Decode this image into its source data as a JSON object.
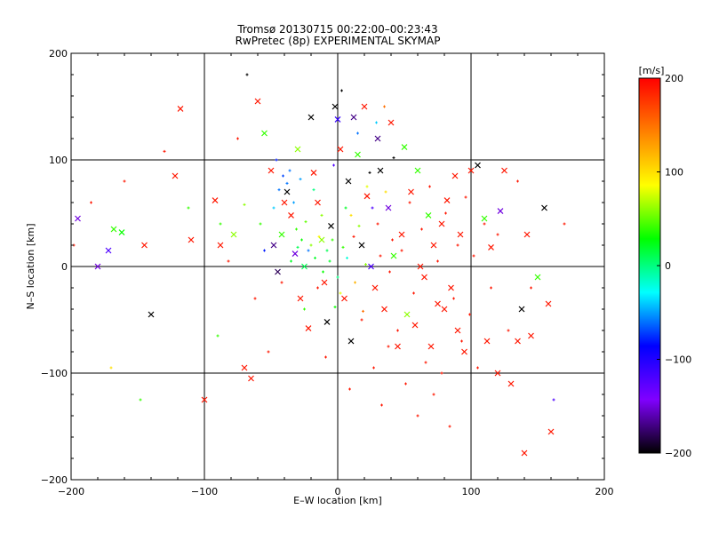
{
  "title_line1": "Tromsø 20130715 00:22:00–00:23:43",
  "title_line2": "RwPretec (8p) EXPERIMENTAL SKYMAP",
  "chart_data": {
    "type": "scatter",
    "title": "Tromsø 20130715 00:22:00–00:23:43 / RwPretec (8p) EXPERIMENTAL SKYMAP",
    "xlabel": "E–W location [km]",
    "ylabel": "N–S location [km]",
    "xlim": [
      -200,
      200
    ],
    "ylim": [
      -200,
      200
    ],
    "xticks": [
      "−200",
      "−100",
      "0",
      "100",
      "200"
    ],
    "yticks": [
      "−200",
      "−100",
      "0",
      "100",
      "200"
    ],
    "grid": true,
    "colorbar": {
      "label": "[m/s]",
      "range": [
        -200,
        200
      ],
      "ticks": [
        "200",
        "100",
        "0",
        "−100",
        "−200"
      ],
      "colors": [
        "#ff0000",
        "#ff8000",
        "#ffff00",
        "#00ff00",
        "#00ffff",
        "#0000ff",
        "#8000ff",
        "#000000"
      ]
    },
    "series": [
      {
        "marker": "x",
        "points": [
          [
            -195,
            45,
            -150
          ],
          [
            -180,
            0,
            -150
          ],
          [
            -172,
            15,
            -120
          ],
          [
            -168,
            35,
            40
          ],
          [
            -162,
            32,
            30
          ],
          [
            -145,
            20,
            190
          ],
          [
            -140,
            -45,
            -200
          ],
          [
            -118,
            148,
            190
          ],
          [
            -122,
            85,
            190
          ],
          [
            -110,
            25,
            190
          ],
          [
            -100,
            -125,
            190
          ],
          [
            -92,
            62,
            190
          ],
          [
            -88,
            20,
            190
          ],
          [
            -78,
            30,
            60
          ],
          [
            -70,
            -95,
            190
          ],
          [
            -65,
            -105,
            190
          ],
          [
            -60,
            155,
            190
          ],
          [
            -55,
            125,
            40
          ],
          [
            -50,
            90,
            190
          ],
          [
            -48,
            20,
            -170
          ],
          [
            -45,
            -5,
            -180
          ],
          [
            -42,
            30,
            40
          ],
          [
            -40,
            60,
            190
          ],
          [
            -38,
            70,
            -200
          ],
          [
            -35,
            48,
            190
          ],
          [
            -32,
            12,
            -150
          ],
          [
            -30,
            110,
            60
          ],
          [
            -28,
            -30,
            190
          ],
          [
            -25,
            0,
            10
          ],
          [
            -22,
            -58,
            190
          ],
          [
            -20,
            140,
            -200
          ],
          [
            -18,
            88,
            190
          ],
          [
            -15,
            60,
            190
          ],
          [
            -12,
            25,
            60
          ],
          [
            -10,
            -15,
            190
          ],
          [
            -8,
            -52,
            -200
          ],
          [
            -5,
            38,
            -200
          ],
          [
            -2,
            150,
            -200
          ],
          [
            0,
            138,
            -110
          ],
          [
            2,
            110,
            190
          ],
          [
            5,
            -30,
            190
          ],
          [
            8,
            80,
            -200
          ],
          [
            10,
            -70,
            -200
          ],
          [
            12,
            140,
            -170
          ],
          [
            15,
            105,
            40
          ],
          [
            18,
            20,
            -200
          ],
          [
            20,
            150,
            190
          ],
          [
            22,
            66,
            190
          ],
          [
            25,
            0,
            -120
          ],
          [
            28,
            -20,
            190
          ],
          [
            30,
            120,
            -170
          ],
          [
            32,
            90,
            -200
          ],
          [
            35,
            -40,
            190
          ],
          [
            38,
            55,
            -150
          ],
          [
            40,
            135,
            190
          ],
          [
            42,
            10,
            40
          ],
          [
            45,
            -75,
            190
          ],
          [
            48,
            30,
            190
          ],
          [
            50,
            112,
            40
          ],
          [
            52,
            -45,
            60
          ],
          [
            55,
            70,
            190
          ],
          [
            58,
            -55,
            190
          ],
          [
            60,
            90,
            40
          ],
          [
            62,
            0,
            190
          ],
          [
            65,
            -10,
            190
          ],
          [
            68,
            48,
            40
          ],
          [
            70,
            -75,
            190
          ],
          [
            72,
            20,
            190
          ],
          [
            75,
            -35,
            190
          ],
          [
            78,
            40,
            190
          ],
          [
            80,
            -40,
            190
          ],
          [
            82,
            62,
            190
          ],
          [
            85,
            -20,
            190
          ],
          [
            88,
            85,
            190
          ],
          [
            90,
            -60,
            190
          ],
          [
            92,
            30,
            190
          ],
          [
            95,
            -80,
            190
          ],
          [
            100,
            90,
            190
          ],
          [
            105,
            95,
            -200
          ],
          [
            110,
            45,
            40
          ],
          [
            112,
            -70,
            190
          ],
          [
            115,
            18,
            190
          ],
          [
            120,
            -100,
            190
          ],
          [
            122,
            52,
            -150
          ],
          [
            125,
            90,
            190
          ],
          [
            130,
            -110,
            190
          ],
          [
            135,
            -70,
            190
          ],
          [
            138,
            -40,
            -200
          ],
          [
            140,
            -175,
            190
          ],
          [
            142,
            30,
            190
          ],
          [
            145,
            -65,
            190
          ],
          [
            150,
            -10,
            40
          ],
          [
            155,
            55,
            -200
          ],
          [
            158,
            -35,
            190
          ],
          [
            160,
            -155,
            190
          ]
        ]
      },
      {
        "marker": "+",
        "points": [
          [
            -198,
            20,
            190
          ],
          [
            -185,
            60,
            190
          ],
          [
            -170,
            -95,
            100
          ],
          [
            -160,
            80,
            190
          ],
          [
            -148,
            -125,
            40
          ],
          [
            -130,
            108,
            190
          ],
          [
            -112,
            55,
            40
          ],
          [
            -100,
            100,
            -200
          ],
          [
            -90,
            -65,
            40
          ],
          [
            -82,
            5,
            190
          ],
          [
            -75,
            120,
            190
          ],
          [
            -68,
            180,
            -200
          ],
          [
            -62,
            -30,
            190
          ],
          [
            -58,
            40,
            40
          ],
          [
            -52,
            -80,
            190
          ],
          [
            -46,
            100,
            -80
          ],
          [
            -42,
            -15,
            190
          ],
          [
            -38,
            78,
            -60
          ],
          [
            -35,
            5,
            20
          ],
          [
            -31,
            35,
            40
          ],
          [
            -28,
            82,
            -50
          ],
          [
            -25,
            -40,
            40
          ],
          [
            -22,
            15,
            -60
          ],
          [
            -18,
            72,
            0
          ],
          [
            -15,
            -20,
            190
          ],
          [
            -12,
            48,
            60
          ],
          [
            -9,
            -85,
            190
          ],
          [
            -6,
            5,
            20
          ],
          [
            -3,
            95,
            -120
          ],
          [
            0,
            -10,
            0
          ],
          [
            3,
            165,
            -200
          ],
          [
            6,
            55,
            20
          ],
          [
            9,
            -115,
            190
          ],
          [
            12,
            28,
            190
          ],
          [
            15,
            125,
            -60
          ],
          [
            18,
            -50,
            190
          ],
          [
            21,
            2,
            60
          ],
          [
            24,
            88,
            -200
          ],
          [
            27,
            -95,
            190
          ],
          [
            30,
            40,
            190
          ],
          [
            33,
            -130,
            190
          ],
          [
            36,
            70,
            100
          ],
          [
            39,
            -5,
            190
          ],
          [
            42,
            102,
            -200
          ],
          [
            45,
            -60,
            190
          ],
          [
            48,
            15,
            190
          ],
          [
            51,
            -110,
            190
          ],
          [
            54,
            60,
            190
          ],
          [
            57,
            -25,
            190
          ],
          [
            60,
            -140,
            190
          ],
          [
            63,
            35,
            190
          ],
          [
            66,
            -90,
            190
          ],
          [
            69,
            75,
            190
          ],
          [
            72,
            -120,
            190
          ],
          [
            75,
            5,
            190
          ],
          [
            78,
            -100,
            190
          ],
          [
            81,
            50,
            190
          ],
          [
            84,
            -150,
            190
          ],
          [
            87,
            -30,
            190
          ],
          [
            90,
            20,
            190
          ],
          [
            93,
            -70,
            190
          ],
          [
            96,
            65,
            190
          ],
          [
            99,
            -45,
            190
          ],
          [
            102,
            10,
            190
          ],
          [
            105,
            -95,
            190
          ],
          [
            110,
            40,
            190
          ],
          [
            115,
            -20,
            190
          ],
          [
            120,
            30,
            190
          ],
          [
            128,
            -60,
            190
          ],
          [
            135,
            80,
            190
          ],
          [
            145,
            -20,
            190
          ],
          [
            162,
            -125,
            -120
          ],
          [
            170,
            40,
            190
          ],
          [
            -88,
            40,
            40
          ],
          [
            -70,
            58,
            60
          ],
          [
            -55,
            15,
            -80
          ],
          [
            -48,
            55,
            -40
          ],
          [
            -44,
            72,
            -60
          ],
          [
            -41,
            85,
            -70
          ],
          [
            -36,
            90,
            -60
          ],
          [
            -33,
            60,
            -50
          ],
          [
            -30,
            18,
            10
          ],
          [
            -27,
            25,
            30
          ],
          [
            -24,
            42,
            50
          ],
          [
            -20,
            20,
            60
          ],
          [
            -17,
            8,
            20
          ],
          [
            -14,
            28,
            90
          ],
          [
            -11,
            -5,
            30
          ],
          [
            -8,
            15,
            10
          ],
          [
            -4,
            25,
            40
          ],
          [
            -2,
            -38,
            30
          ],
          [
            2,
            -25,
            80
          ],
          [
            4,
            18,
            40
          ],
          [
            7,
            8,
            -20
          ],
          [
            10,
            48,
            100
          ],
          [
            13,
            -15,
            120
          ],
          [
            16,
            38,
            60
          ],
          [
            19,
            -42,
            150
          ],
          [
            22,
            75,
            80
          ],
          [
            26,
            55,
            -120
          ],
          [
            29,
            135,
            -40
          ],
          [
            32,
            10,
            190
          ],
          [
            35,
            150,
            150
          ],
          [
            38,
            -75,
            190
          ],
          [
            41,
            25,
            190
          ]
        ]
      }
    ]
  }
}
